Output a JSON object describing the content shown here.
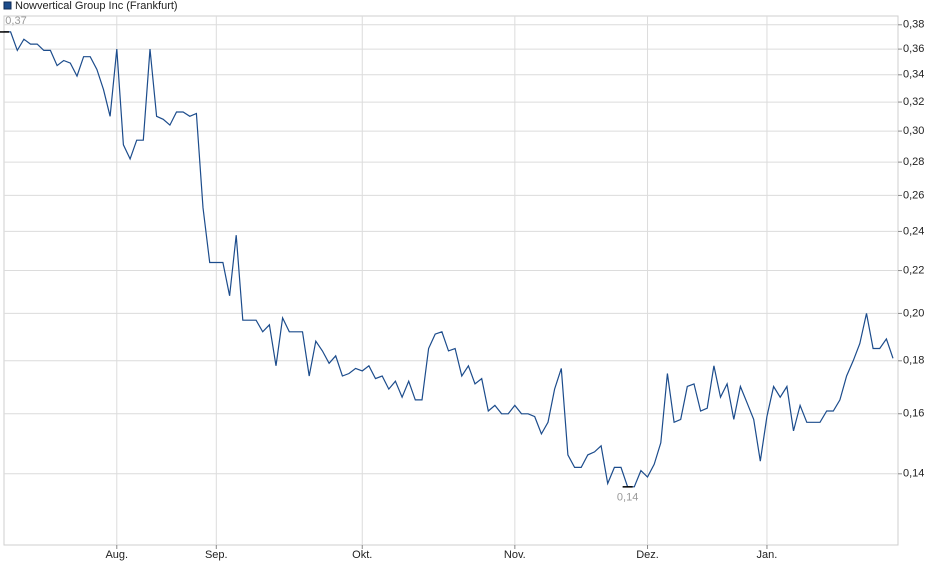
{
  "chart_data": {
    "type": "line",
    "title": "Nowvertical Group Inc (Frankfurt)",
    "categories": [
      null,
      null,
      null,
      null,
      null,
      null,
      null,
      null,
      null,
      null,
      null,
      null,
      null,
      null,
      null,
      null,
      null,
      "Aug.",
      null,
      null,
      null,
      null,
      null,
      null,
      null,
      null,
      null,
      null,
      null,
      null,
      null,
      null,
      "Sep.",
      null,
      null,
      null,
      null,
      null,
      null,
      null,
      null,
      null,
      null,
      null,
      null,
      null,
      null,
      null,
      null,
      null,
      null,
      null,
      null,
      null,
      "Okt.",
      null,
      null,
      null,
      null,
      null,
      null,
      null,
      null,
      null,
      null,
      null,
      null,
      null,
      null,
      null,
      null,
      null,
      null,
      null,
      null,
      null,
      null,
      "Nov.",
      null,
      null,
      null,
      null,
      null,
      null,
      null,
      null,
      null,
      null,
      null,
      null,
      null,
      null,
      null,
      null,
      null,
      null,
      null,
      "Dez.",
      null,
      null,
      null,
      null,
      null,
      null,
      null,
      null,
      null,
      null,
      null,
      null,
      null,
      null,
      null,
      null,
      null,
      "Jan.",
      null,
      null,
      null,
      null,
      null,
      null,
      null,
      null,
      null,
      null,
      null,
      null,
      null,
      null,
      null,
      null,
      null,
      null,
      null
    ],
    "series": [
      {
        "name": "Nowvertical Group Inc (Frankfurt)",
        "color": "#1c4c8c",
        "values": [
          0.374,
          0.374,
          0.359,
          0.368,
          0.364,
          0.364,
          0.359,
          0.359,
          0.347,
          0.351,
          0.349,
          0.339,
          0.354,
          0.354,
          0.344,
          0.329,
          0.31,
          0.36,
          0.291,
          0.282,
          0.294,
          0.294,
          0.36,
          0.31,
          0.308,
          0.304,
          0.313,
          0.313,
          0.31,
          0.312,
          0.253,
          0.224,
          0.224,
          0.224,
          0.208,
          0.238,
          0.197,
          0.197,
          0.197,
          0.192,
          0.195,
          0.178,
          0.198,
          0.192,
          0.192,
          0.192,
          0.174,
          0.188,
          0.184,
          0.179,
          0.182,
          0.174,
          0.175,
          0.177,
          0.176,
          0.178,
          0.173,
          0.174,
          0.169,
          0.172,
          0.166,
          0.172,
          0.165,
          0.165,
          0.185,
          0.191,
          0.192,
          0.184,
          0.185,
          0.174,
          0.178,
          0.171,
          0.173,
          0.161,
          0.163,
          0.16,
          0.16,
          0.163,
          0.16,
          0.16,
          0.159,
          0.153,
          0.157,
          0.169,
          0.177,
          0.146,
          0.142,
          0.142,
          0.146,
          0.147,
          0.149,
          0.137,
          0.142,
          0.142,
          0.136,
          0.136,
          0.141,
          0.139,
          0.143,
          0.15,
          0.175,
          0.157,
          0.158,
          0.17,
          0.171,
          0.161,
          0.162,
          0.178,
          0.166,
          0.171,
          0.158,
          0.17,
          0.164,
          0.158,
          0.144,
          0.159,
          0.17,
          0.166,
          0.17,
          0.154,
          0.163,
          0.157,
          0.157,
          0.157,
          0.161,
          0.161,
          0.165,
          0.174,
          0.18,
          0.187,
          0.2,
          0.185,
          0.185,
          0.189,
          0.181
        ]
      }
    ],
    "max_label": "0,37",
    "min_label": "0,14",
    "log_scale": true,
    "grid": true,
    "ylim": [
      0.1195,
      0.3875
    ],
    "yticks": [
      {
        "value": 0.14,
        "label": "0,14"
      },
      {
        "value": 0.16,
        "label": "0,16"
      },
      {
        "value": 0.18,
        "label": "0,18"
      },
      {
        "value": 0.2,
        "label": "0,20"
      },
      {
        "value": 0.22,
        "label": "0,22"
      },
      {
        "value": 0.24,
        "label": "0,24"
      },
      {
        "value": 0.26,
        "label": "0,26"
      },
      {
        "value": 0.28,
        "label": "0,28"
      },
      {
        "value": 0.3,
        "label": "0,30"
      },
      {
        "value": 0.32,
        "label": "0,32"
      },
      {
        "value": 0.34,
        "label": "0,34"
      },
      {
        "value": 0.36,
        "label": "0,36"
      },
      {
        "value": 0.38,
        "label": "0,38"
      }
    ]
  }
}
